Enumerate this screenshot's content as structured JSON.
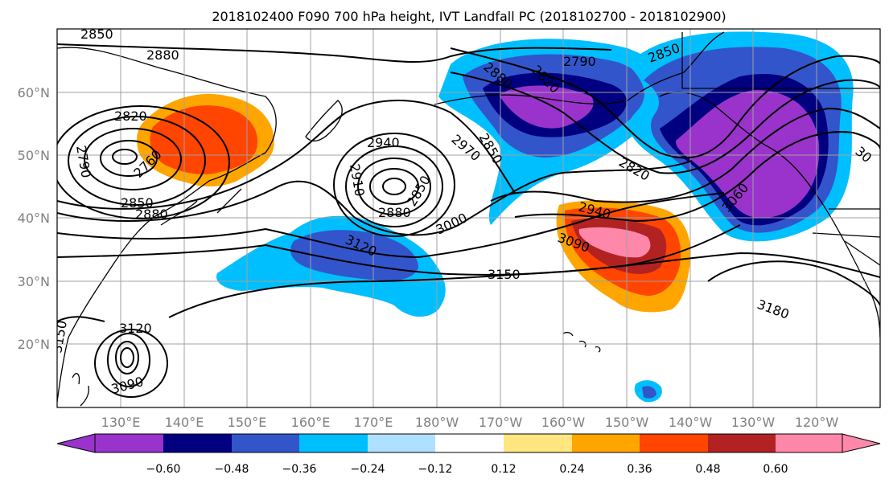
{
  "title": "2018102400 F090 700 hPa height, IVT Landfall PC (2018102700 - 2018102900)",
  "lat_labels": [
    "60°N",
    "50°N",
    "40°N",
    "30°N",
    "20°N"
  ],
  "lon_labels": [
    "130°E",
    "140°E",
    "150°E",
    "160°E",
    "170°E",
    "180°W",
    "170°W",
    "160°W",
    "150°W",
    "140°W",
    "130°W",
    "120°W"
  ],
  "colorbar": {
    "colors": [
      "#9933cc",
      "#000080",
      "#3355cc",
      "#00bfff",
      "#b0e0ff",
      "#ffffff",
      "#ffe680",
      "#ffa500",
      "#ff4500",
      "#b22222",
      "#ff88aa"
    ],
    "tick_labels": [
      "−0.60",
      "−0.48",
      "−0.36",
      "−0.24",
      "−0.12",
      "0.12",
      "0.24",
      "0.36",
      "0.48",
      "0.60"
    ]
  },
  "contour_labels": [
    "2850",
    "2880",
    "2820",
    "2790",
    "2760",
    "2850",
    "2880",
    "2940",
    "2910",
    "2850",
    "2880",
    "2970",
    "2850",
    "3000",
    "3120",
    "3150",
    "3120",
    "3090",
    "3150",
    "2880",
    "2790",
    "2820",
    "2850",
    "2820",
    "2940",
    "3090",
    "3060",
    "3180",
    "30"
  ]
}
